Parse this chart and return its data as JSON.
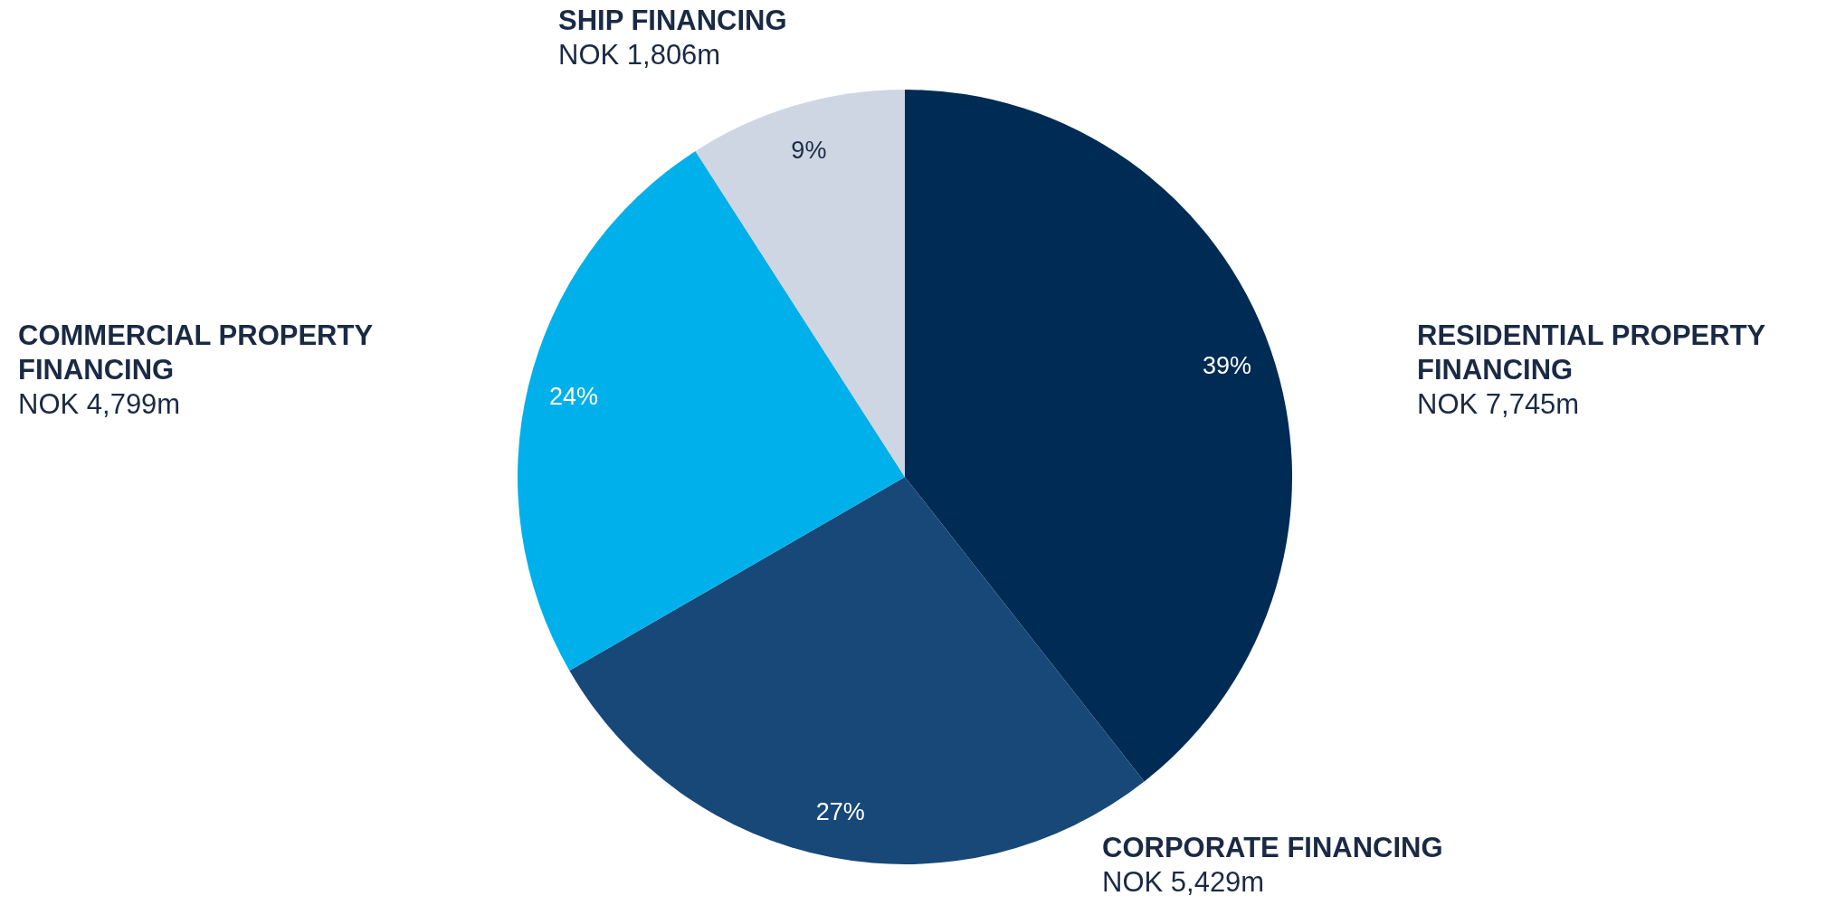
{
  "chart_data": {
    "type": "pie",
    "categories": [
      "RESIDENTIAL PROPERTY FINANCING",
      "CORPORATE FINANCING",
      "COMMERCIAL PROPERTY FINANCING",
      "SHIP FINANCING"
    ],
    "values": [
      39,
      27,
      24,
      9
    ],
    "value_labels": [
      "39%",
      "27%",
      "24%",
      "9%"
    ],
    "colors": [
      "#002b54",
      "#174878",
      "#00b0ea",
      "#cfd6e3"
    ],
    "annotations": [
      "NOK 7,745m",
      "NOK 5,429m",
      "NOK 4,799m",
      "NOK 1,806m"
    ]
  }
}
